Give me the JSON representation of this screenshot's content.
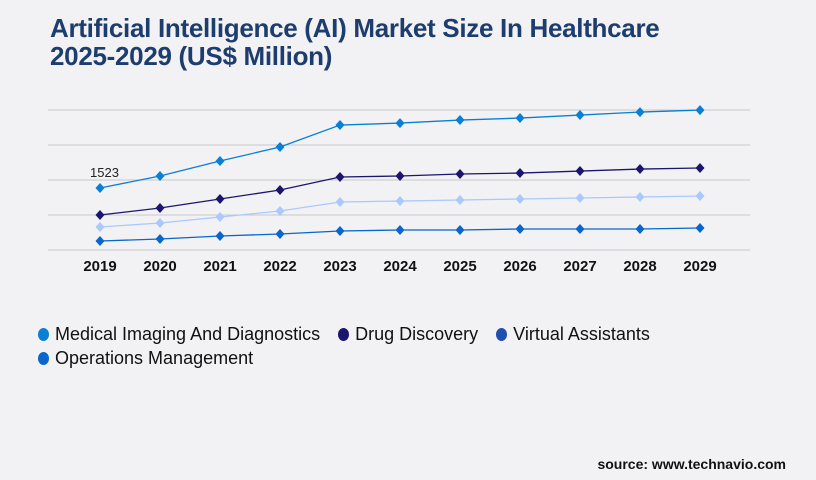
{
  "title_line1": "Artificial Intelligence (AI) Market Size In Healthcare",
  "title_line2": "2025-2029 (US$ Million)",
  "source": "source: www.technavio.com",
  "chart_data": {
    "type": "line",
    "title": "Artificial Intelligence (AI) Market Size In Healthcare 2025-2029 (US$ Million)",
    "categories": [
      "2019",
      "2020",
      "2021",
      "2022",
      "2023",
      "2024",
      "2025",
      "2026",
      "2027",
      "2028",
      "2029"
    ],
    "ylim": [
      0,
      3440
    ],
    "grid": true,
    "legend": "bottom",
    "annotations": [
      {
        "series": 0,
        "index": 0,
        "text": "1523"
      }
    ],
    "series": [
      {
        "name": "Medical Imaging And Diagnostics",
        "color": "#0a7fd6",
        "legend_color": "#0a7fd6",
        "values": [
          1523,
          1818,
          2186,
          2530,
          3070,
          3119,
          3193,
          3242,
          3316,
          3389,
          3438
        ]
      },
      {
        "name": "Drug Discovery",
        "color": "#1c1570",
        "legend_color": "#1c1570",
        "values": [
          860,
          1032,
          1253,
          1474,
          1793,
          1818,
          1867,
          1891,
          1940,
          1989,
          2014
        ]
      },
      {
        "name": "Virtual Assistants",
        "color": "#a9c9ff",
        "legend_color": "#1f4fb0",
        "values": [
          565,
          663,
          811,
          958,
          1179,
          1203,
          1228,
          1253,
          1277,
          1302,
          1326
        ]
      },
      {
        "name": "Operations Management",
        "color": "#0866cc",
        "legend_color": "#0866cc",
        "values": [
          221,
          270,
          344,
          393,
          467,
          491,
          491,
          516,
          516,
          516,
          540
        ]
      }
    ]
  }
}
